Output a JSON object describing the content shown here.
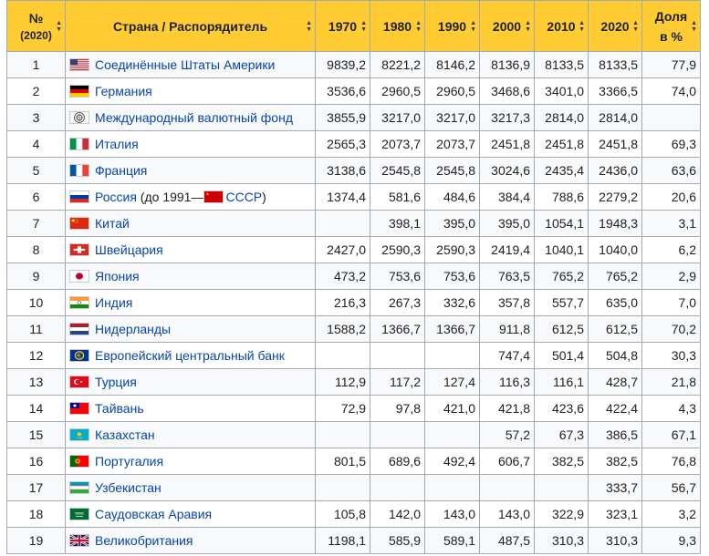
{
  "header": {
    "rank_label": "№",
    "rank_sub": "(2020)",
    "country_label": "Страна / Распорядитель",
    "years": [
      "1970",
      "1980",
      "1990",
      "2000",
      "2010",
      "2020"
    ],
    "share_line1": "Доля",
    "share_line2": "в %"
  },
  "rows": [
    {
      "rank": "1",
      "name": "Соединённые Штаты Америки",
      "flag": "us-flag-icon",
      "v": [
        "9839,2",
        "8221,2",
        "8146,2",
        "8136,9",
        "8133,5",
        "8133,5"
      ],
      "share": "77,9"
    },
    {
      "rank": "2",
      "name": "Германия",
      "flag": "germany-flag-icon",
      "v": [
        "3536,6",
        "2960,5",
        "2960,5",
        "3468,6",
        "3401,0",
        "3366,5"
      ],
      "share": "74,0"
    },
    {
      "rank": "3",
      "name": "Международный валютный фонд",
      "flag": "imf-logo-icon",
      "v": [
        "3855,9",
        "3217,0",
        "3217,0",
        "3217,3",
        "2814,0",
        "2814,0"
      ],
      "share": ""
    },
    {
      "rank": "4",
      "name": "Италия",
      "flag": "italy-flag-icon",
      "v": [
        "2565,3",
        "2073,7",
        "2073,7",
        "2451,8",
        "2451,8",
        "2451,8"
      ],
      "share": "69,3"
    },
    {
      "rank": "5",
      "name": "Франция",
      "flag": "france-flag-icon",
      "v": [
        "3138,6",
        "2545,8",
        "2545,8",
        "3024,6",
        "2435,4",
        "2436,0"
      ],
      "share": "63,6"
    },
    {
      "rank": "6",
      "name": "Россия",
      "extra_text": " (до 1991—",
      "extra_link": "СССР",
      "extra_close": ")",
      "flag": "russia-flag-icon",
      "extra_flag": "ussr-flag-icon",
      "v": [
        "1374,4",
        "581,6",
        "484,6",
        "384,4",
        "788,6",
        "2279,2"
      ],
      "share": "20,6"
    },
    {
      "rank": "7",
      "name": "Китай",
      "flag": "china-flag-icon",
      "v": [
        "",
        "398,1",
        "395,0",
        "395,0",
        "1054,1",
        "1948,3"
      ],
      "share": "3,1"
    },
    {
      "rank": "8",
      "name": "Швейцария",
      "flag": "switzerland-flag-icon",
      "v": [
        "2427,0",
        "2590,3",
        "2590,3",
        "2419,4",
        "1040,1",
        "1040,0"
      ],
      "share": "6,2"
    },
    {
      "rank": "9",
      "name": "Япония",
      "flag": "japan-flag-icon",
      "v": [
        "473,2",
        "753,6",
        "753,6",
        "763,5",
        "765,2",
        "765,2"
      ],
      "share": "2,9"
    },
    {
      "rank": "10",
      "name": "Индия",
      "flag": "india-flag-icon",
      "v": [
        "216,3",
        "267,3",
        "332,6",
        "357,8",
        "557,7",
        "635,0"
      ],
      "share": "7,0"
    },
    {
      "rank": "11",
      "name": "Нидерланды",
      "flag": "netherlands-flag-icon",
      "v": [
        "1588,2",
        "1366,7",
        "1366,7",
        "911,8",
        "612,5",
        "612,5"
      ],
      "share": "70,2"
    },
    {
      "rank": "12",
      "name": "Европейский центральный банк",
      "flag": "ecb-logo-icon",
      "v": [
        "",
        "",
        "",
        "747,4",
        "501,4",
        "504,8"
      ],
      "share": "30,3"
    },
    {
      "rank": "13",
      "name": "Турция",
      "flag": "turkey-flag-icon",
      "v": [
        "112,9",
        "117,2",
        "127,4",
        "116,3",
        "116,1",
        "428,7"
      ],
      "share": "21,8"
    },
    {
      "rank": "14",
      "name": "Тайвань",
      "flag": "taiwan-flag-icon",
      "v": [
        "72,9",
        "97,8",
        "421,0",
        "421,8",
        "423,6",
        "422,4"
      ],
      "share": "4,3"
    },
    {
      "rank": "15",
      "name": "Казахстан",
      "flag": "kazakhstan-flag-icon",
      "v": [
        "",
        "",
        "",
        "57,2",
        "67,3",
        "386,5"
      ],
      "share": "67,1"
    },
    {
      "rank": "16",
      "name": "Португалия",
      "flag": "portugal-flag-icon",
      "v": [
        "801,5",
        "689,6",
        "492,4",
        "606,7",
        "382,5",
        "382,5"
      ],
      "share": "76,8"
    },
    {
      "rank": "17",
      "name": "Узбекистан",
      "flag": "uzbekistan-flag-icon",
      "v": [
        "",
        "",
        "",
        "",
        "",
        "333,7"
      ],
      "share": "56,7"
    },
    {
      "rank": "18",
      "name": "Саудовская Аравия",
      "flag": "saudi-arabia-flag-icon",
      "v": [
        "105,8",
        "142,0",
        "143,0",
        "143,0",
        "322,9",
        "323,1"
      ],
      "share": "3,2"
    },
    {
      "rank": "19",
      "name": "Великобритания",
      "flag": "uk-flag-icon",
      "v": [
        "1198,1",
        "585,9",
        "589,1",
        "487,5",
        "310,3",
        "310,3"
      ],
      "share": "9,3"
    }
  ]
}
